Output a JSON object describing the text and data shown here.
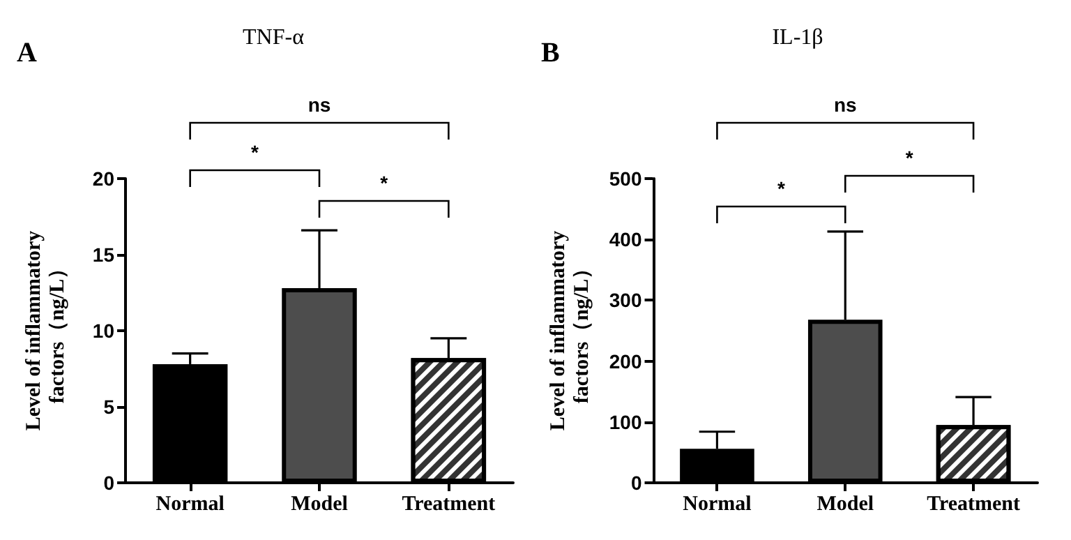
{
  "chart_data": [
    {
      "type": "bar",
      "title": "TNF-α",
      "ylabel": "Level of inflammatory factors（ng/L）",
      "categories": [
        "Normal",
        "Model",
        "Treatment"
      ],
      "values": [
        7.8,
        12.8,
        8.2
      ],
      "colors": [
        "#000000",
        "#4d4d4d",
        "#333333"
      ],
      "errors": [
        [
          7.8,
          8.5
        ],
        [
          12.8,
          16.6
        ],
        [
          8.2,
          9.5
        ]
      ],
      "ylim": [
        0,
        20
      ],
      "yticks": [
        0,
        5,
        10,
        15,
        20
      ],
      "grid": false,
      "annotations": [
        "A",
        "*",
        "*",
        "ns"
      ]
    },
    {
      "type": "bar",
      "title": "IL-1β",
      "ylabel": "Level of inflammatory factors（ng/L）",
      "categories": [
        "Normal",
        "Model",
        "Treatment"
      ],
      "values": [
        56,
        268,
        95
      ],
      "colors": [
        "#000000",
        "#4d4d4d",
        "#333333"
      ],
      "errors": [
        [
          56,
          84
        ],
        [
          268,
          413
        ],
        [
          95,
          141
        ]
      ],
      "ylim": [
        0,
        500
      ],
      "yticks": [
        0,
        100,
        200,
        300,
        400,
        500
      ],
      "grid": false,
      "annotations": [
        "B",
        "*",
        "*",
        "ns"
      ]
    }
  ]
}
